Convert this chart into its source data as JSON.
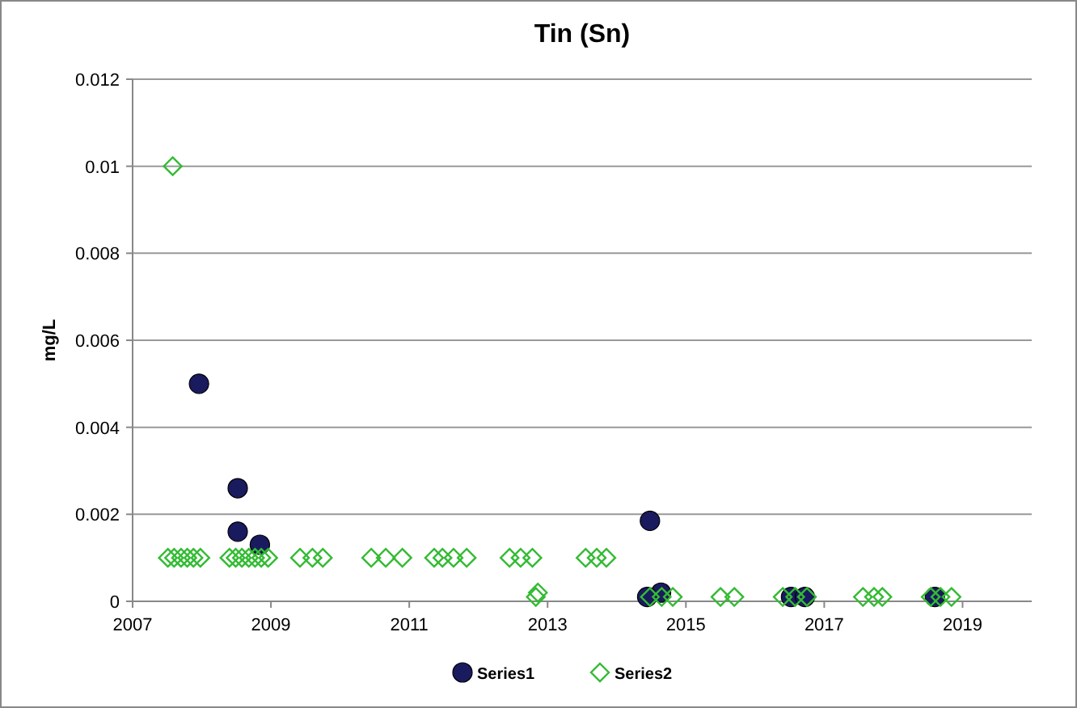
{
  "chart_data": {
    "type": "scatter",
    "title": "Tin (Sn)",
    "ylabel": "mg/L",
    "xlim": [
      2007,
      2020
    ],
    "xticks": [
      2007,
      2009,
      2011,
      2013,
      2015,
      2017,
      2019
    ],
    "ylim": [
      0,
      0.012
    ],
    "yticks": [
      0,
      0.002,
      0.004,
      0.006,
      0.008,
      0.01,
      0.012
    ],
    "grid": "y",
    "legend": "bottom",
    "series": [
      {
        "name": "Series1",
        "color": "#1a1a5e",
        "marker": "circle",
        "x": [
          2007.96,
          2008.52,
          2008.52,
          2008.84,
          2014.48,
          2014.64,
          2014.44,
          2016.52,
          2016.72,
          2018.6
        ],
        "values": [
          0.005,
          0.0026,
          0.0016,
          0.0013,
          0.00185,
          0.0002,
          0.0001,
          0.0001,
          0.0001,
          0.0001
        ]
      },
      {
        "name": "Series2",
        "color": "#33bb33",
        "marker": "diamond",
        "x": [
          2007.58,
          2007.51,
          2007.6,
          2007.7,
          2007.79,
          2007.88,
          2007.98,
          2008.4,
          2008.49,
          2008.58,
          2008.68,
          2008.77,
          2008.86,
          2008.96,
          2009.42,
          2009.6,
          2009.75,
          2010.45,
          2010.66,
          2010.9,
          2011.36,
          2011.48,
          2011.64,
          2011.83,
          2012.45,
          2012.61,
          2012.78,
          2013.55,
          2013.71,
          2013.85,
          2012.86,
          2012.83,
          2014.48,
          2014.65,
          2014.81,
          2015.5,
          2015.7,
          2016.4,
          2016.58,
          2016.75,
          2017.56,
          2017.72,
          2017.84,
          2018.54,
          2018.68,
          2018.84
        ],
        "values": [
          0.01,
          0.001,
          0.001,
          0.001,
          0.001,
          0.001,
          0.001,
          0.001,
          0.001,
          0.001,
          0.001,
          0.001,
          0.001,
          0.001,
          0.001,
          0.001,
          0.001,
          0.001,
          0.001,
          0.001,
          0.001,
          0.001,
          0.001,
          0.001,
          0.001,
          0.001,
          0.001,
          0.001,
          0.001,
          0.001,
          0.0002,
          0.0001,
          0.0001,
          0.0001,
          0.0001,
          0.0001,
          0.0001,
          0.0001,
          0.0001,
          0.0001,
          0.0001,
          0.0001,
          0.0001,
          0.0001,
          0.0001,
          0.0001
        ]
      }
    ]
  }
}
